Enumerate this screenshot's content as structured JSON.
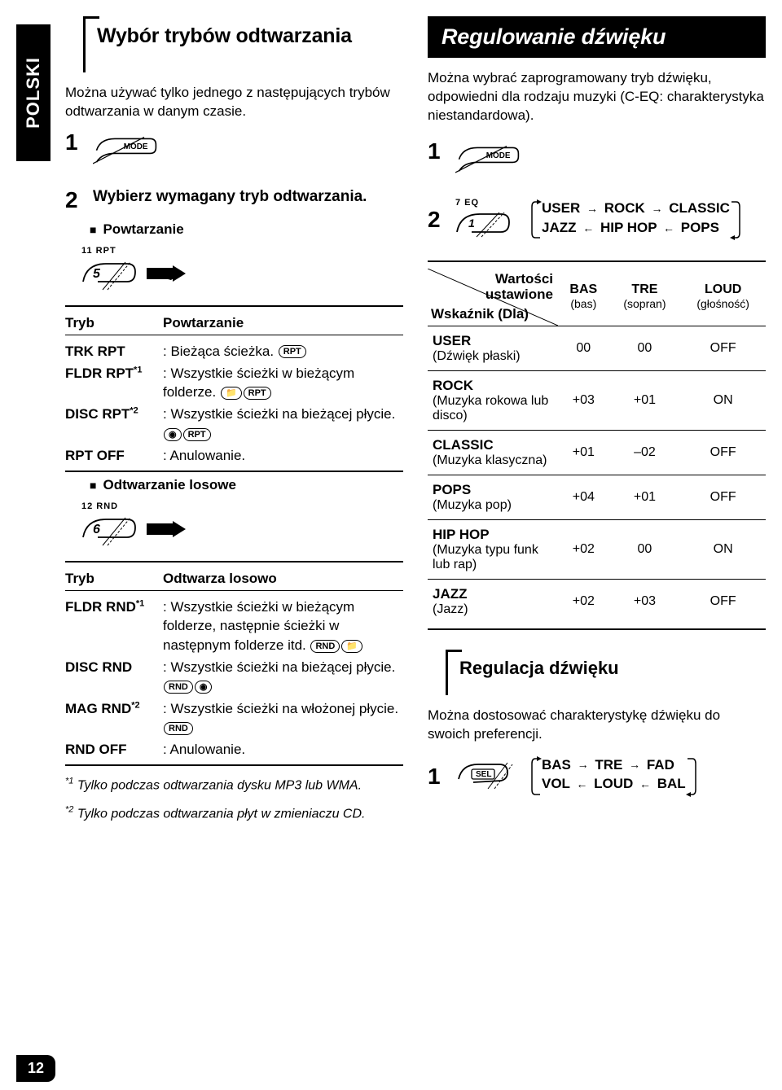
{
  "language_tab": "POLSKI",
  "page_number": "12",
  "left": {
    "title": "Wybór trybów odtwarzania",
    "intro": "Można używać tylko jednego z następujących trybów odtwarzania w danym czasie.",
    "step1_button": "MODE",
    "step2_title": "Wybierz wymagany tryb odtwarzania.",
    "sub_repeat": "Powtarzanie",
    "btn_rpt_label": "11  RPT",
    "btn_rpt_num": "5",
    "table_repeat": {
      "h1": "Tryb",
      "h2": "Powtarzanie",
      "rows": [
        {
          "mode": "TRK RPT",
          "desc": ": Bieżąca ścieżka. ",
          "icons": [
            "RPT"
          ]
        },
        {
          "mode": "FLDR RPT",
          "sup": "*1",
          "desc": ": Wszystkie ścieżki w bieżącym folderze. ",
          "icons": [
            "FOLDER",
            "RPT"
          ]
        },
        {
          "mode": "DISC RPT",
          "sup": "*2",
          "desc": ": Wszystkie ścieżki na bieżącej płycie. ",
          "icons": [
            "DISC",
            "RPT"
          ]
        },
        {
          "mode": "RPT OFF",
          "desc": ": Anulowanie.",
          "icons": []
        }
      ]
    },
    "sub_random": "Odtwarzanie losowe",
    "btn_rnd_label": "12  RND",
    "btn_rnd_num": "6",
    "table_random": {
      "h1": "Tryb",
      "h2": "Odtwarza losowo",
      "rows": [
        {
          "mode": "FLDR RND",
          "sup": "*1",
          "desc": ": Wszystkie ścieżki w bieżącym folderze, następnie ścieżki w następnym folderze itd. ",
          "icons": [
            "RND",
            "FOLDER"
          ]
        },
        {
          "mode": "DISC RND",
          "desc": ": Wszystkie ścieżki na bieżącej płycie. ",
          "icons": [
            "RND",
            "DISC"
          ]
        },
        {
          "mode": "MAG RND",
          "sup": "*2",
          "desc": ": Wszystkie ścieżki na włożonej płycie. ",
          "icons": [
            "RND"
          ]
        },
        {
          "mode": "RND OFF",
          "desc": ": Anulowanie.",
          "icons": []
        }
      ]
    },
    "footnote1_marker": "*1",
    "footnote1": "Tylko podczas odtwarzania dysku MP3 lub WMA.",
    "footnote2_marker": "*2",
    "footnote2": "Tylko podczas odtwarzania płyt w zmieniaczu CD."
  },
  "right": {
    "title": "Regulowanie dźwięku",
    "intro": "Można wybrać zaprogramowany tryb dźwięku, odpowiedni dla rodzaju muzyki (C-EQ: charakterystyka niestandardowa).",
    "step1_button": "MODE",
    "eq_btn_label": "7  EQ",
    "eq_btn_num": "1",
    "flow_row1": [
      "USER",
      "ROCK",
      "CLASSIC"
    ],
    "flow_row2": [
      "JAZZ",
      "HIP HOP",
      "POPS"
    ],
    "eq_table": {
      "diag_top": "Wartości\nustawione",
      "diag_bottom": "Wskaźnik (Dla)",
      "cols": [
        {
          "h": "BAS",
          "s": "(bas)"
        },
        {
          "h": "TRE",
          "s": "(sopran)"
        },
        {
          "h": "LOUD",
          "s": "(głośność)"
        }
      ],
      "rows": [
        {
          "label": "USER",
          "sub": "(Dźwięk płaski)",
          "v": [
            "00",
            "00",
            "OFF"
          ]
        },
        {
          "label": "ROCK",
          "sub": "(Muzyka rokowa lub disco)",
          "v": [
            "+03",
            "+01",
            "ON"
          ]
        },
        {
          "label": "CLASSIC",
          "sub": "(Muzyka klasyczna)",
          "v": [
            "+01",
            "–02",
            "OFF"
          ]
        },
        {
          "label": "POPS",
          "sub": "(Muzyka pop)",
          "v": [
            "+04",
            "+01",
            "OFF"
          ]
        },
        {
          "label": "HIP HOP",
          "sub": "(Muzyka typu funk lub rap)",
          "v": [
            "+02",
            "00",
            "ON"
          ]
        },
        {
          "label": "JAZZ",
          "sub": "(Jazz)",
          "v": [
            "+02",
            "+03",
            "OFF"
          ]
        }
      ]
    },
    "sub2_title": "Regulacja dźwięku",
    "sub2_desc": "Można dostosować charakterystykę dźwięku do swoich preferencji.",
    "sel_button": "SEL",
    "flow2_row1": [
      "BAS",
      "TRE",
      "FAD"
    ],
    "flow2_row2": [
      "VOL",
      "LOUD",
      "BAL"
    ]
  }
}
